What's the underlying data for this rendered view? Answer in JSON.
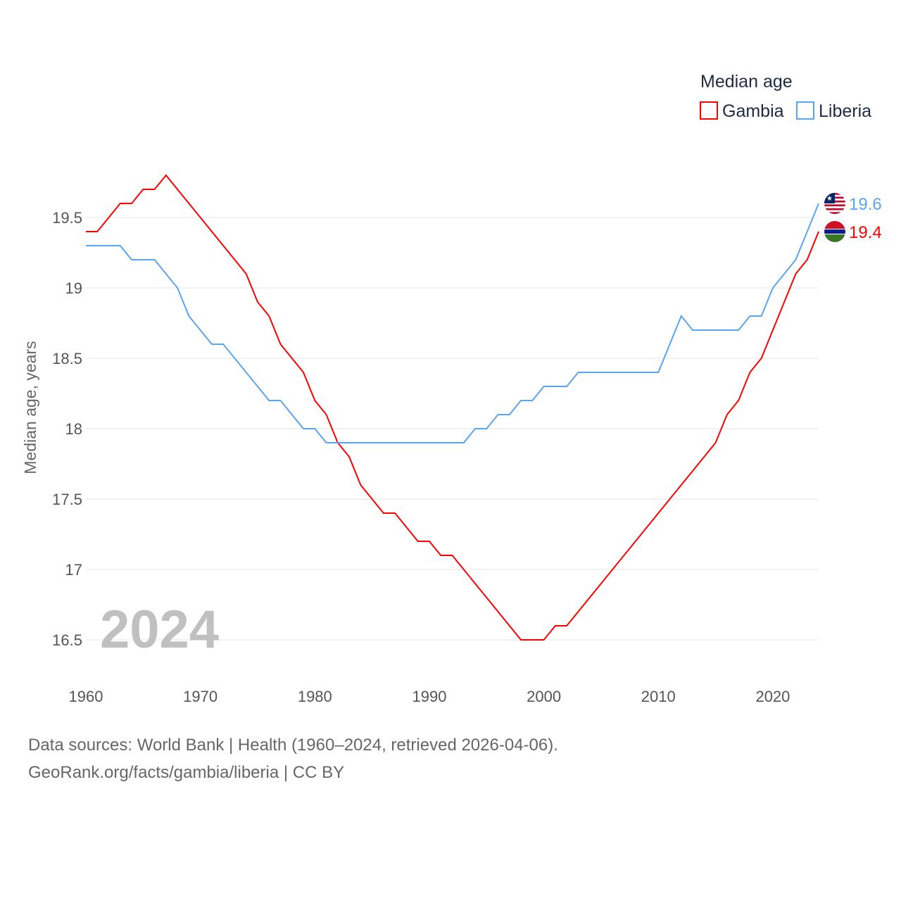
{
  "chart_data": {
    "type": "line",
    "title": "Median age",
    "ylabel": "Median age, years",
    "xlabel": "",
    "xlim": [
      1960,
      2024
    ],
    "ylim": [
      16.2,
      19.9
    ],
    "x_ticks": [
      "1960",
      "1970",
      "1980",
      "1990",
      "2000",
      "2010",
      "2020"
    ],
    "y_ticks": [
      "16.5",
      "17",
      "17.5",
      "18",
      "18.5",
      "19",
      "19.5"
    ],
    "grid": true,
    "legend_title": "Median age",
    "legend_position": "top-right",
    "year_label": "2024",
    "x_start": 1960,
    "series": [
      {
        "name": "Gambia",
        "color": "#ff0000",
        "end_label": "19.4",
        "values": [
          19.4,
          19.4,
          19.5,
          19.6,
          19.6,
          19.7,
          19.7,
          19.8,
          19.7,
          19.6,
          19.5,
          19.4,
          19.3,
          19.2,
          19.1,
          18.9,
          18.8,
          18.6,
          18.5,
          18.4,
          18.2,
          18.1,
          17.9,
          17.8,
          17.6,
          17.5,
          17.4,
          17.4,
          17.3,
          17.2,
          17.2,
          17.1,
          17.1,
          17.0,
          16.9,
          16.8,
          16.7,
          16.6,
          16.5,
          16.5,
          16.5,
          16.6,
          16.6,
          16.7,
          16.8,
          16.9,
          17.0,
          17.1,
          17.2,
          17.3,
          17.4,
          17.5,
          17.6,
          17.7,
          17.8,
          17.9,
          18.1,
          18.2,
          18.4,
          18.5,
          18.7,
          18.9,
          19.1,
          19.2,
          19.4
        ]
      },
      {
        "name": "Liberia",
        "color": "#5aa5ef",
        "end_label": "19.6",
        "values": [
          19.3,
          19.3,
          19.3,
          19.3,
          19.2,
          19.2,
          19.2,
          19.1,
          19.0,
          18.8,
          18.7,
          18.6,
          18.6,
          18.5,
          18.4,
          18.3,
          18.2,
          18.2,
          18.1,
          18.0,
          18.0,
          17.9,
          17.9,
          17.9,
          17.9,
          17.9,
          17.9,
          17.9,
          17.9,
          17.9,
          17.9,
          17.9,
          17.9,
          17.9,
          18.0,
          18.0,
          18.1,
          18.1,
          18.2,
          18.2,
          18.3,
          18.3,
          18.3,
          18.4,
          18.4,
          18.4,
          18.4,
          18.4,
          18.4,
          18.4,
          18.4,
          18.6,
          18.8,
          18.7,
          18.7,
          18.7,
          18.7,
          18.7,
          18.8,
          18.8,
          19.0,
          19.1,
          19.2,
          19.4,
          19.6
        ]
      }
    ]
  },
  "footer": {
    "line1": "Data sources: World Bank | Health (1960–2024, retrieved 2026-04-06).",
    "line2": "GeoRank.org/facts/gambia/liberia | CC BY"
  }
}
